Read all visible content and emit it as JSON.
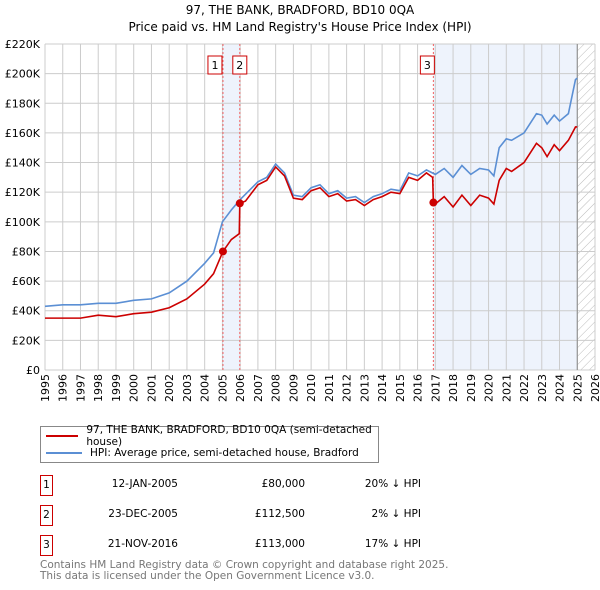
{
  "chart_data": {
    "type": "line",
    "title": "97, THE BANK, BRADFORD, BD10 0QA",
    "subtitle": "Price paid vs. HM Land Registry's House Price Index (HPI)",
    "xlim": [
      1995,
      2026
    ],
    "ylim": [
      0,
      220000
    ],
    "x_ticks": [
      "1995",
      "1996",
      "1997",
      "1998",
      "1999",
      "2000",
      "2001",
      "2002",
      "2003",
      "2004",
      "2005",
      "2006",
      "2007",
      "2008",
      "2009",
      "2010",
      "2011",
      "2012",
      "2013",
      "2014",
      "2015",
      "2016",
      "2017",
      "2018",
      "2019",
      "2020",
      "2021",
      "2022",
      "2023",
      "2024",
      "2025",
      "2026"
    ],
    "y_ticks": [
      "£0",
      "£20K",
      "£40K",
      "£60K",
      "£80K",
      "£100K",
      "£120K",
      "£140K",
      "£160K",
      "£180K",
      "£200K",
      "£220K"
    ],
    "grid": true,
    "series": [
      {
        "name": "97, THE BANK, BRADFORD, BD10 0QA (semi-detached house)",
        "color": "#cc0000",
        "points": [
          [
            1995,
            35
          ],
          [
            1996,
            35
          ],
          [
            1997,
            35
          ],
          [
            1998,
            37
          ],
          [
            1999,
            36
          ],
          [
            2000,
            38
          ],
          [
            2001,
            39
          ],
          [
            2002,
            42
          ],
          [
            2003,
            48
          ],
          [
            2004,
            58
          ],
          [
            2004.5,
            65
          ],
          [
            2005.03,
            80
          ],
          [
            2005.5,
            88
          ],
          [
            2005.95,
            92
          ],
          [
            2005.98,
            112.5
          ],
          [
            2006.3,
            114
          ],
          [
            2007,
            125
          ],
          [
            2007.5,
            128
          ],
          [
            2008,
            137
          ],
          [
            2008.5,
            131
          ],
          [
            2009,
            116
          ],
          [
            2009.5,
            115
          ],
          [
            2010,
            121
          ],
          [
            2010.5,
            123
          ],
          [
            2011,
            117
          ],
          [
            2011.5,
            119
          ],
          [
            2012,
            114
          ],
          [
            2012.5,
            115
          ],
          [
            2013,
            111
          ],
          [
            2013.5,
            115
          ],
          [
            2014,
            117
          ],
          [
            2014.5,
            120
          ],
          [
            2015,
            119
          ],
          [
            2015.5,
            130
          ],
          [
            2016,
            128
          ],
          [
            2016.5,
            133
          ],
          [
            2016.85,
            130
          ],
          [
            2016.89,
            113
          ],
          [
            2017,
            112
          ],
          [
            2017.5,
            117
          ],
          [
            2018,
            110
          ],
          [
            2018.5,
            118
          ],
          [
            2019,
            111
          ],
          [
            2019.5,
            118
          ],
          [
            2020,
            116
          ],
          [
            2020.3,
            112
          ],
          [
            2020.6,
            128
          ],
          [
            2021,
            136
          ],
          [
            2021.3,
            134
          ],
          [
            2022,
            140
          ],
          [
            2022.7,
            153
          ],
          [
            2023,
            150
          ],
          [
            2023.3,
            144
          ],
          [
            2023.7,
            152
          ],
          [
            2024,
            148
          ],
          [
            2024.5,
            155
          ],
          [
            2024.9,
            164
          ],
          [
            2025,
            164
          ]
        ]
      },
      {
        "name": "HPI: Average price, semi-detached house, Bradford",
        "color": "#5b8fd4",
        "points": [
          [
            1995,
            43
          ],
          [
            1996,
            44
          ],
          [
            1997,
            44
          ],
          [
            1998,
            45
          ],
          [
            1999,
            45
          ],
          [
            2000,
            47
          ],
          [
            2001,
            48
          ],
          [
            2002,
            52
          ],
          [
            2003,
            60
          ],
          [
            2004,
            72
          ],
          [
            2004.5,
            79
          ],
          [
            2005,
            100
          ],
          [
            2005.5,
            108
          ],
          [
            2006,
            115
          ],
          [
            2007,
            127
          ],
          [
            2007.5,
            130
          ],
          [
            2008,
            139
          ],
          [
            2008.5,
            133
          ],
          [
            2009,
            118
          ],
          [
            2009.5,
            117
          ],
          [
            2010,
            123
          ],
          [
            2010.5,
            125
          ],
          [
            2011,
            119
          ],
          [
            2011.5,
            121
          ],
          [
            2012,
            116
          ],
          [
            2012.5,
            117
          ],
          [
            2013,
            113
          ],
          [
            2013.5,
            117
          ],
          [
            2014,
            119
          ],
          [
            2014.5,
            122
          ],
          [
            2015,
            121
          ],
          [
            2015.5,
            133
          ],
          [
            2016,
            131
          ],
          [
            2016.5,
            135
          ],
          [
            2017,
            132
          ],
          [
            2017.5,
            136
          ],
          [
            2018,
            130
          ],
          [
            2018.5,
            138
          ],
          [
            2019,
            132
          ],
          [
            2019.5,
            136
          ],
          [
            2020,
            135
          ],
          [
            2020.3,
            131
          ],
          [
            2020.6,
            150
          ],
          [
            2021,
            156
          ],
          [
            2021.3,
            155
          ],
          [
            2022,
            160
          ],
          [
            2022.7,
            173
          ],
          [
            2023,
            172
          ],
          [
            2023.3,
            166
          ],
          [
            2023.7,
            172
          ],
          [
            2024,
            168
          ],
          [
            2024.5,
            173
          ],
          [
            2024.9,
            196
          ],
          [
            2025,
            197
          ]
        ]
      }
    ],
    "sales": [
      {
        "label": "1",
        "date": "12-JAN-2005",
        "x": 2005.03,
        "price": "£80,000",
        "value": 80,
        "hpi": "20% ↓ HPI"
      },
      {
        "label": "2",
        "date": "23-DEC-2005",
        "x": 2005.98,
        "price": "£112,500",
        "value": 112.5,
        "hpi": "2% ↓ HPI"
      },
      {
        "label": "3",
        "date": "21-NOV-2016",
        "x": 2016.89,
        "price": "£113,000",
        "value": 113,
        "hpi": "17% ↓ HPI"
      }
    ],
    "forecast_start": 2025.0
  },
  "footer": {
    "line1": "Contains HM Land Registry data © Crown copyright and database right 2025.",
    "line2": "This data is licensed under the Open Government Licence v3.0."
  }
}
